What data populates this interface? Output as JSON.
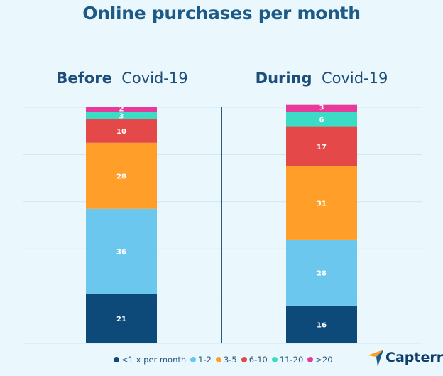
{
  "chart_data": {
    "type": "bar",
    "stacked": true,
    "title": "Online purchases per month",
    "groups": [
      {
        "label_bold": "Before",
        "label": "Covid-19",
        "values": [
          21,
          36,
          28,
          10,
          3,
          2
        ]
      },
      {
        "label_bold": "During",
        "label": "Covid-19",
        "values": [
          16,
          28,
          31,
          17,
          6,
          3
        ]
      }
    ],
    "series": [
      {
        "name": "<1 x per month",
        "color": "#0d4a7a"
      },
      {
        "name": "1-2",
        "color": "#6cc7ef"
      },
      {
        "name": "3-5",
        "color": "#ff9f2a"
      },
      {
        "name": "6-10",
        "color": "#e44848"
      },
      {
        "name": "11-20",
        "color": "#3adcc6"
      },
      {
        "name": ">20",
        "color": "#e83a9a"
      }
    ],
    "ylim": [
      0,
      100
    ],
    "grid": true,
    "legend": "bottom"
  },
  "brand": "Capterra"
}
